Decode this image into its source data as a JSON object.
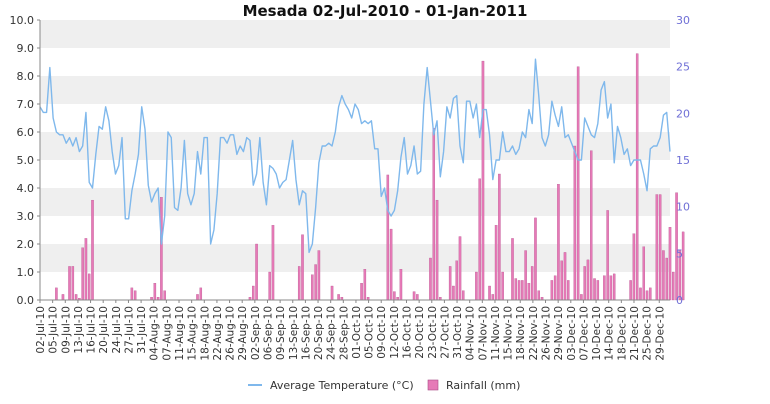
{
  "chart_data": {
    "type": "line+bar",
    "title": "Mesada  02-Jul-2010 - 01-Jan-2011",
    "y_left": {
      "min": 0,
      "max": 10,
      "ticks": [
        "0.0",
        "1.0",
        "2.0",
        "3.0",
        "4.0",
        "5.0",
        "6.0",
        "7.0",
        "8.0",
        "9.0",
        "10.0"
      ]
    },
    "y_right": {
      "min": 0,
      "max": 30,
      "ticks": [
        "0",
        "5",
        "10",
        "15",
        "20",
        "25",
        "30"
      ]
    },
    "x_ticks": [
      "02-Jul-10",
      "05-Jul-10",
      "09-Jul-10",
      "13-Jul-10",
      "16-Jul-10",
      "20-Jul-10",
      "24-Jul-10",
      "27-Jul-10",
      "31-Jul-10",
      "04-Aug-10",
      "07-Aug-10",
      "11-Aug-10",
      "15-Aug-10",
      "18-Aug-10",
      "22-Aug-10",
      "26-Aug-10",
      "29-Aug-10",
      "02-Sep-10",
      "06-Sep-10",
      "09-Sep-10",
      "13-Sep-10",
      "16-Sep-10",
      "20-Sep-10",
      "24-Sep-10",
      "28-Sep-10",
      "01-Oct-10",
      "05-Oct-10",
      "09-Oct-10",
      "12-Oct-10",
      "16-Oct-10",
      "20-Oct-10",
      "23-Oct-10",
      "27-Oct-10",
      "31-Oct-10",
      "04-Nov-10",
      "07-Nov-10",
      "11-Nov-10",
      "15-Nov-10",
      "18-Nov-10",
      "22-Nov-10",
      "26-Nov-10",
      "29-Nov-10",
      "03-Dec-10",
      "07-Dec-10",
      "10-Dec-10",
      "14-Dec-10",
      "18-Dec-10",
      "21-Dec-10",
      "25-Dec-10",
      "29-Dec-10"
    ],
    "series": [
      {
        "name": "Average Temperature (°C)",
        "axis": "left",
        "type": "line",
        "color": "#7fb8ec",
        "values": [
          6.9,
          6.7,
          6.7,
          8.3,
          6.5,
          6.0,
          5.9,
          5.9,
          5.6,
          5.8,
          5.5,
          5.8,
          5.3,
          5.5,
          6.7,
          4.2,
          4.0,
          5.2,
          6.2,
          6.1,
          6.9,
          6.4,
          5.3,
          4.5,
          4.8,
          5.8,
          2.9,
          2.9,
          3.9,
          4.5,
          5.2,
          6.9,
          6.1,
          4.1,
          3.5,
          3.8,
          4.0,
          2.0,
          3.0,
          6.0,
          5.8,
          3.3,
          3.2,
          4.0,
          5.7,
          3.8,
          3.4,
          3.8,
          5.3,
          4.5,
          5.8,
          5.8,
          2.0,
          2.5,
          3.8,
          5.8,
          5.8,
          5.6,
          5.9,
          5.9,
          5.2,
          5.5,
          5.3,
          5.8,
          5.7,
          4.1,
          4.5,
          5.8,
          4.2,
          3.4,
          4.8,
          4.7,
          4.5,
          4.0,
          4.2,
          4.3,
          5.0,
          5.7,
          4.3,
          3.4,
          3.9,
          3.8,
          1.7,
          2.0,
          3.3,
          4.9,
          5.5,
          5.5,
          5.6,
          5.5,
          6.0,
          6.9,
          7.3,
          7.0,
          6.8,
          6.5,
          7.0,
          6.8,
          6.3,
          6.4,
          6.3,
          6.4,
          5.4,
          5.4,
          3.7,
          4.0,
          3.2,
          3.0,
          3.2,
          3.9,
          5.1,
          5.8,
          4.5,
          4.8,
          5.5,
          4.5,
          4.6,
          7.0,
          8.3,
          7.1,
          5.9,
          6.4,
          4.4,
          5.3,
          6.9,
          6.5,
          7.2,
          7.3,
          5.5,
          4.9,
          7.1,
          7.1,
          6.5,
          7.0,
          5.8,
          6.8,
          6.8,
          5.9,
          4.3,
          5.0,
          5.0,
          6.0,
          5.3,
          5.3,
          5.5,
          5.2,
          5.4,
          6.0,
          5.8,
          6.8,
          6.3,
          8.6,
          7.3,
          5.8,
          5.5,
          5.9,
          7.1,
          6.6,
          6.2,
          6.9,
          5.8,
          5.9,
          5.6,
          5.3,
          5.0,
          5.0,
          6.5,
          6.2,
          5.9,
          5.8,
          6.3,
          7.5,
          7.8,
          6.5,
          7.0,
          4.9,
          6.2,
          5.8,
          5.2,
          5.4,
          4.8,
          5.0,
          5.0,
          5.0,
          4.5,
          3.9,
          5.4,
          5.5,
          5.5,
          5.8,
          6.6,
          6.7,
          5.3
        ]
      },
      {
        "name": "Rainfall (mm)",
        "axis": "right",
        "type": "bar",
        "color": "#e67ab7",
        "values": [
          0,
          0,
          0,
          0,
          0,
          1.3,
          0,
          0.6,
          0,
          3.6,
          3.6,
          0.6,
          0.2,
          5.6,
          6.6,
          2.8,
          10.7,
          0,
          0,
          0,
          0,
          0,
          0,
          0,
          0,
          0,
          0,
          0,
          1.3,
          1.0,
          0,
          0,
          0,
          0,
          0.3,
          1.8,
          0.3,
          11.0,
          1.0,
          0,
          0,
          0,
          0,
          0,
          0,
          0,
          0,
          0,
          0.6,
          1.3,
          0,
          0,
          0,
          0,
          0,
          0,
          0,
          0,
          0,
          0,
          0,
          0,
          0,
          0,
          0.3,
          1.5,
          6.0,
          0,
          0,
          0,
          3.0,
          8.0,
          0,
          0,
          0,
          0,
          0,
          0,
          0,
          3.6,
          7.0,
          0,
          0,
          2.7,
          3.8,
          5.3,
          0,
          0,
          0,
          1.5,
          0,
          0.6,
          0.3,
          0,
          0,
          0,
          0,
          0,
          1.8,
          3.3,
          0.3,
          0,
          0,
          0,
          0,
          0,
          13.4,
          7.6,
          0.9,
          0.3,
          3.3,
          0,
          0,
          0,
          0.9,
          0.6,
          0,
          0,
          0,
          4.5,
          18.4,
          10.7,
          0.3,
          0,
          0,
          3.6,
          1.5,
          4.2,
          6.8,
          1.0,
          0,
          0,
          0,
          3.0,
          13.0,
          25.6,
          0,
          1.5,
          0.6,
          8.0,
          13.5,
          3.0,
          0,
          0,
          6.6,
          2.3,
          2.1,
          2.1,
          5.3,
          1.8,
          3.6,
          8.8,
          1.0,
          0.3,
          0,
          0,
          2.1,
          2.6,
          12.4,
          4.2,
          5.1,
          2.1,
          0,
          16.5,
          25.0,
          0.6,
          3.6,
          4.3,
          16.0,
          2.3,
          2.1,
          0,
          2.6,
          9.6,
          2.6,
          2.8,
          0,
          0,
          0,
          0,
          2.1,
          7.1,
          26.4,
          1.3,
          5.7,
          1.0,
          1.3,
          0,
          11.3,
          11.3,
          5.3,
          4.5,
          7.8,
          3.0,
          11.5,
          5.3,
          7.3
        ]
      }
    ],
    "legend_placement": "bottom-center",
    "grid": "horizontal-bands"
  }
}
